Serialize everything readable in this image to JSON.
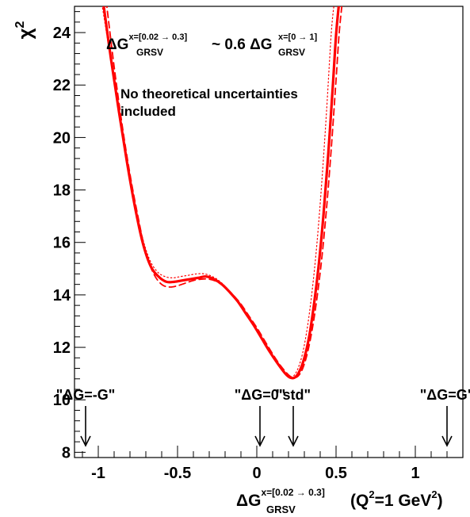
{
  "chart_data": {
    "type": "line",
    "ylabel_main": "χ",
    "ylabel_sup": "2",
    "xlabel": {
      "main": "ΔG",
      "sup": "x=[0.02 → 0.3]",
      "sub": "GRSV",
      "rest_open": "(Q",
      "rest_sup": "2",
      "rest_mid": "=1 GeV",
      "rest_sup2": "2",
      "rest_close": ")"
    },
    "xlim": [
      -1.15,
      1.3
    ],
    "ylim": [
      7.8,
      25
    ],
    "x_ticks": [
      {
        "value": -1,
        "label": "-1"
      },
      {
        "value": -0.5,
        "label": "-0.5"
      },
      {
        "value": 0,
        "label": "0"
      },
      {
        "value": 0.5,
        "label": "0.5"
      },
      {
        "value": 1,
        "label": "1"
      }
    ],
    "y_ticks": [
      {
        "value": 8,
        "label": "8"
      },
      {
        "value": 10,
        "label": "10"
      },
      {
        "value": 12,
        "label": "12"
      },
      {
        "value": 14,
        "label": "14"
      },
      {
        "value": 16,
        "label": "16"
      },
      {
        "value": 18,
        "label": "18"
      },
      {
        "value": 20,
        "label": "20"
      },
      {
        "value": 22,
        "label": "22"
      },
      {
        "value": 24,
        "label": "24"
      }
    ],
    "formula": {
      "left_main": "ΔG",
      "left_sup": "x=[0.02 → 0.3]",
      "left_sub": "GRSV",
      "mid": "~ 0.6 ΔG",
      "right_sup": "x=[0 → 1]",
      "right_sub": "GRSV"
    },
    "note_lines": [
      "No theoretical uncertainties",
      "included"
    ],
    "color": "#ff0000",
    "series": [
      {
        "style": "solid",
        "x": [
          -0.97,
          -0.92,
          -0.87,
          -0.82,
          -0.77,
          -0.72,
          -0.67,
          -0.62,
          -0.57,
          -0.52,
          -0.47,
          -0.42,
          -0.37,
          -0.32,
          -0.27,
          -0.22,
          -0.17,
          -0.12,
          -0.07,
          -0.02,
          0.03,
          0.08,
          0.13,
          0.18,
          0.21,
          0.24,
          0.27,
          0.3,
          0.33,
          0.36,
          0.39,
          0.42,
          0.45,
          0.48,
          0.5,
          0.52
        ],
        "y": [
          25.2,
          23.0,
          21.0,
          19.1,
          17.4,
          16.0,
          15.1,
          14.7,
          14.5,
          14.5,
          14.55,
          14.6,
          14.65,
          14.7,
          14.6,
          14.4,
          14.1,
          13.75,
          13.3,
          12.85,
          12.35,
          11.85,
          11.4,
          11.0,
          10.85,
          10.85,
          11.1,
          11.6,
          12.4,
          13.6,
          15.1,
          17.0,
          19.3,
          22.0,
          23.9,
          25.2
        ]
      },
      {
        "style": "dashed",
        "x": [
          -0.95,
          -0.9,
          -0.85,
          -0.8,
          -0.75,
          -0.7,
          -0.65,
          -0.6,
          -0.55,
          -0.5,
          -0.45,
          -0.4,
          -0.35,
          -0.3,
          -0.25,
          -0.2,
          -0.15,
          -0.1,
          -0.05,
          0.0,
          0.05,
          0.1,
          0.15,
          0.2,
          0.23,
          0.26,
          0.29,
          0.32,
          0.35,
          0.38,
          0.41,
          0.44,
          0.47,
          0.5,
          0.52,
          0.54
        ],
        "y": [
          25.2,
          22.7,
          20.5,
          18.6,
          17.0,
          15.6,
          14.8,
          14.4,
          14.3,
          14.35,
          14.45,
          14.55,
          14.6,
          14.6,
          14.5,
          14.3,
          14.0,
          13.65,
          13.2,
          12.75,
          12.25,
          11.75,
          11.3,
          10.95,
          10.85,
          10.9,
          11.2,
          11.8,
          12.7,
          13.9,
          15.4,
          17.3,
          19.6,
          22.2,
          24.0,
          25.2
        ]
      },
      {
        "style": "dotted",
        "x": [
          -0.98,
          -0.93,
          -0.88,
          -0.83,
          -0.78,
          -0.73,
          -0.68,
          -0.63,
          -0.58,
          -0.53,
          -0.48,
          -0.43,
          -0.38,
          -0.33,
          -0.28,
          -0.23,
          -0.18,
          -0.13,
          -0.08,
          -0.03,
          0.02,
          0.07,
          0.12,
          0.17,
          0.2,
          0.23,
          0.26,
          0.29,
          0.32,
          0.35,
          0.38,
          0.41,
          0.44,
          0.47,
          0.49
        ],
        "y": [
          25.2,
          23.3,
          21.4,
          19.6,
          17.9,
          16.4,
          15.4,
          14.9,
          14.7,
          14.65,
          14.7,
          14.75,
          14.8,
          14.8,
          14.7,
          14.5,
          14.2,
          13.85,
          13.4,
          12.95,
          12.45,
          11.95,
          11.5,
          11.1,
          10.9,
          10.9,
          11.2,
          11.8,
          12.8,
          14.2,
          16.0,
          18.3,
          21.0,
          24.0,
          25.2
        ]
      }
    ],
    "markers": [
      {
        "label": "\"ΔG=-G\"",
        "x": -1.08
      },
      {
        "label": "\"ΔG=0\"",
        "x": 0.02
      },
      {
        "label": "\"std\"",
        "x": 0.23
      },
      {
        "label": "\"ΔG=G\"",
        "x": 1.2
      }
    ]
  }
}
